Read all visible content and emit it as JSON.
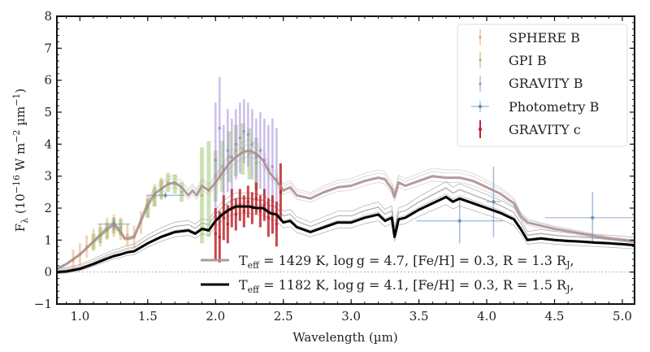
{
  "chart_data": {
    "type": "line",
    "title": "",
    "xlabel": "Wavelength (µm)",
    "ylabel": "Fλ (10⁻¹⁶ W m⁻² µm⁻¹)",
    "ylabel_parts": {
      "main": "F",
      "sub": "λ",
      "rest": " (10",
      "exp1": "−16",
      "mid": " W m",
      "exp2": "−2",
      "mid2": " µm",
      "exp3": "−1",
      "end": ")"
    },
    "xlim": [
      0.83,
      5.09
    ],
    "ylim": [
      -1,
      8
    ],
    "xticks": [
      1.0,
      1.5,
      2.0,
      2.5,
      3.0,
      3.5,
      4.0,
      4.5,
      5.0
    ],
    "xtick_labels": [
      "1.0",
      "1.5",
      "2.0",
      "2.5",
      "3.0",
      "3.5",
      "4.0",
      "4.5",
      "5.0"
    ],
    "yticks": [
      -1,
      0,
      1,
      2,
      3,
      4,
      5,
      6,
      7,
      8
    ],
    "ytick_labels": [
      "−1",
      "0",
      "1",
      "2",
      "3",
      "4",
      "5",
      "6",
      "7",
      "8"
    ],
    "zero_line": true,
    "legend": {
      "placement": "top-right",
      "entries": [
        {
          "label": "SPHERE B",
          "color": "#e8a060"
        },
        {
          "label": "GPI B",
          "color": "#8fbf5a"
        },
        {
          "label": "GRAVITY B",
          "color": "#9a7fd6"
        },
        {
          "label": "Photometry B",
          "color": "#5b84b8"
        },
        {
          "label": "GRAVITY c",
          "color": "#c0272d"
        }
      ]
    },
    "model_legend": {
      "placement": "bottom-center",
      "entries": [
        {
          "label_parts": {
            "T": "T",
            "sub": "eff",
            "text": " = 1429 K, log g = 4.7, [Fe/H] = 0.3, R = 1.3 R",
            "rsub": "J",
            "tail": ","
          },
          "color": "#b39898"
        },
        {
          "label_parts": {
            "T": "T",
            "sub": "eff",
            "text": " = 1182 K, log g = 4.1, [Fe/H] = 0.3, R = 1.5 R",
            "rsub": "J",
            "tail": ","
          },
          "color": "#000000"
        }
      ]
    },
    "series": [
      {
        "name": "Model B (Teff=1429 K)",
        "color": "#a88a8a",
        "x": [
          0.83,
          0.9,
          1.0,
          1.05,
          1.1,
          1.15,
          1.2,
          1.25,
          1.3,
          1.33,
          1.36,
          1.4,
          1.45,
          1.5,
          1.55,
          1.6,
          1.65,
          1.7,
          1.75,
          1.8,
          1.83,
          1.86,
          1.9,
          1.95,
          2.0,
          2.05,
          2.1,
          2.15,
          2.2,
          2.25,
          2.3,
          2.35,
          2.4,
          2.45,
          2.5,
          2.55,
          2.6,
          2.7,
          2.8,
          2.9,
          3.0,
          3.1,
          3.2,
          3.25,
          3.3,
          3.32,
          3.35,
          3.4,
          3.5,
          3.6,
          3.7,
          3.8,
          3.9,
          4.0,
          4.1,
          4.2,
          4.25,
          4.3,
          4.4,
          4.5,
          4.6,
          4.7,
          4.8,
          4.9,
          5.0,
          5.09
        ],
        "y": [
          0.1,
          0.25,
          0.55,
          0.75,
          0.95,
          1.15,
          1.35,
          1.5,
          1.25,
          1.05,
          1.05,
          1.1,
          1.6,
          2.1,
          2.45,
          2.6,
          2.75,
          2.8,
          2.65,
          2.4,
          2.55,
          2.4,
          2.7,
          2.55,
          2.8,
          3.1,
          3.4,
          3.6,
          3.75,
          3.8,
          3.7,
          3.5,
          3.1,
          2.85,
          2.55,
          2.65,
          2.4,
          2.3,
          2.5,
          2.65,
          2.7,
          2.85,
          2.95,
          2.9,
          2.6,
          2.35,
          2.8,
          2.7,
          2.85,
          3.0,
          2.95,
          2.95,
          2.85,
          2.65,
          2.45,
          2.15,
          1.75,
          1.55,
          1.45,
          1.35,
          1.28,
          1.2,
          1.12,
          1.05,
          1.0,
          0.95
        ]
      },
      {
        "name": "Model c (Teff=1182 K)",
        "color": "#000000",
        "x": [
          0.83,
          0.9,
          1.0,
          1.1,
          1.2,
          1.25,
          1.3,
          1.35,
          1.4,
          1.5,
          1.6,
          1.7,
          1.8,
          1.85,
          1.9,
          1.95,
          2.0,
          2.05,
          2.1,
          2.15,
          2.2,
          2.25,
          2.3,
          2.35,
          2.4,
          2.45,
          2.5,
          2.55,
          2.6,
          2.7,
          2.8,
          2.9,
          3.0,
          3.1,
          3.2,
          3.25,
          3.3,
          3.32,
          3.35,
          3.4,
          3.5,
          3.6,
          3.7,
          3.75,
          3.8,
          3.9,
          4.0,
          4.1,
          4.2,
          4.25,
          4.3,
          4.4,
          4.5,
          4.6,
          4.7,
          4.8,
          4.9,
          5.0,
          5.09
        ],
        "y": [
          0.0,
          0.02,
          0.1,
          0.25,
          0.42,
          0.5,
          0.55,
          0.62,
          0.65,
          0.9,
          1.1,
          1.25,
          1.3,
          1.2,
          1.35,
          1.3,
          1.6,
          1.8,
          1.95,
          2.05,
          2.05,
          2.05,
          2.0,
          2.0,
          1.85,
          1.8,
          1.55,
          1.6,
          1.4,
          1.25,
          1.4,
          1.55,
          1.55,
          1.7,
          1.8,
          1.6,
          1.7,
          1.1,
          1.65,
          1.7,
          1.95,
          2.15,
          2.35,
          2.2,
          2.3,
          2.15,
          2.0,
          1.85,
          1.65,
          1.35,
          1.0,
          1.05,
          1.0,
          0.97,
          0.95,
          0.92,
          0.9,
          0.87,
          0.84
        ]
      },
      {
        "name": "SPHERE B",
        "color": "#e8a060",
        "x": [
          0.95,
          1.0,
          1.05,
          1.1,
          1.15,
          1.2,
          1.25,
          1.3,
          1.35,
          1.4,
          1.45,
          1.5,
          1.55,
          1.6
        ],
        "y": [
          0.35,
          0.55,
          0.8,
          1.0,
          1.15,
          1.35,
          1.45,
          1.35,
          1.15,
          1.1,
          1.55,
          2.05,
          2.4,
          2.6
        ],
        "yerr": [
          0.35,
          0.35,
          0.35,
          0.35,
          0.35,
          0.35,
          0.35,
          0.35,
          0.35,
          0.35,
          0.35,
          0.35,
          0.35,
          0.35
        ]
      },
      {
        "name": "GPI B",
        "color": "#8fbf5a",
        "x": [
          1.1,
          1.15,
          1.2,
          1.25,
          1.3,
          1.5,
          1.55,
          1.6,
          1.65,
          1.7,
          1.75,
          1.9,
          1.95,
          2.0,
          2.05,
          2.1,
          2.15,
          2.2,
          2.25,
          2.3
        ],
        "y": [
          0.95,
          1.15,
          1.3,
          1.45,
          1.4,
          2.0,
          2.35,
          2.6,
          2.8,
          2.75,
          2.5,
          2.4,
          2.6,
          3.0,
          3.3,
          3.6,
          3.8,
          3.85,
          3.7,
          3.4
        ],
        "yerr": [
          0.25,
          0.25,
          0.25,
          0.25,
          0.25,
          0.3,
          0.3,
          0.3,
          0.3,
          0.3,
          0.3,
          1.5,
          1.5,
          0.8,
          0.8,
          0.8,
          0.8,
          0.8,
          0.8,
          0.8
        ]
      },
      {
        "name": "GRAVITY B",
        "color": "#9a7fd6",
        "x": [
          2.0,
          2.03,
          2.06,
          2.09,
          2.12,
          2.15,
          2.18,
          2.21,
          2.24,
          2.27,
          2.3,
          2.33,
          2.36,
          2.39,
          2.42,
          2.45
        ],
        "y": [
          3.5,
          4.5,
          3.2,
          3.8,
          3.6,
          4.0,
          4.2,
          4.4,
          4.3,
          4.0,
          3.6,
          3.8,
          3.5,
          3.2,
          3.3,
          2.9
        ],
        "yerr": [
          1.8,
          1.6,
          1.4,
          1.3,
          1.2,
          1.1,
          1.1,
          1.0,
          1.0,
          1.1,
          1.2,
          1.2,
          1.3,
          1.4,
          1.5,
          1.6
        ]
      },
      {
        "name": "GRAVITY c",
        "color": "#c0272d",
        "x": [
          2.0,
          2.03,
          2.06,
          2.09,
          2.12,
          2.15,
          2.18,
          2.21,
          2.24,
          2.27,
          2.3,
          2.33,
          2.36,
          2.39,
          2.42,
          2.45,
          2.48
        ],
        "y": [
          1.2,
          1.1,
          1.7,
          1.5,
          2.0,
          1.8,
          2.1,
          1.9,
          2.2,
          2.0,
          2.3,
          1.9,
          2.1,
          1.7,
          1.8,
          1.5,
          2.5
        ],
        "yerr": [
          0.8,
          0.8,
          0.7,
          0.6,
          0.6,
          0.5,
          0.5,
          0.5,
          0.5,
          0.5,
          0.5,
          0.5,
          0.5,
          0.6,
          0.6,
          0.7,
          0.9
        ]
      },
      {
        "name": "Photometry B",
        "color": "#5b84b8",
        "x": [
          1.25,
          1.63,
          3.8,
          4.05,
          4.78
        ],
        "y": [
          1.5,
          2.4,
          1.6,
          2.2,
          1.7
        ],
        "xerr": [
          0.12,
          0.14,
          0.32,
          0.05,
          0.35
        ],
        "yerr": [
          0.2,
          0.1,
          0.7,
          1.1,
          0.8
        ]
      }
    ]
  }
}
